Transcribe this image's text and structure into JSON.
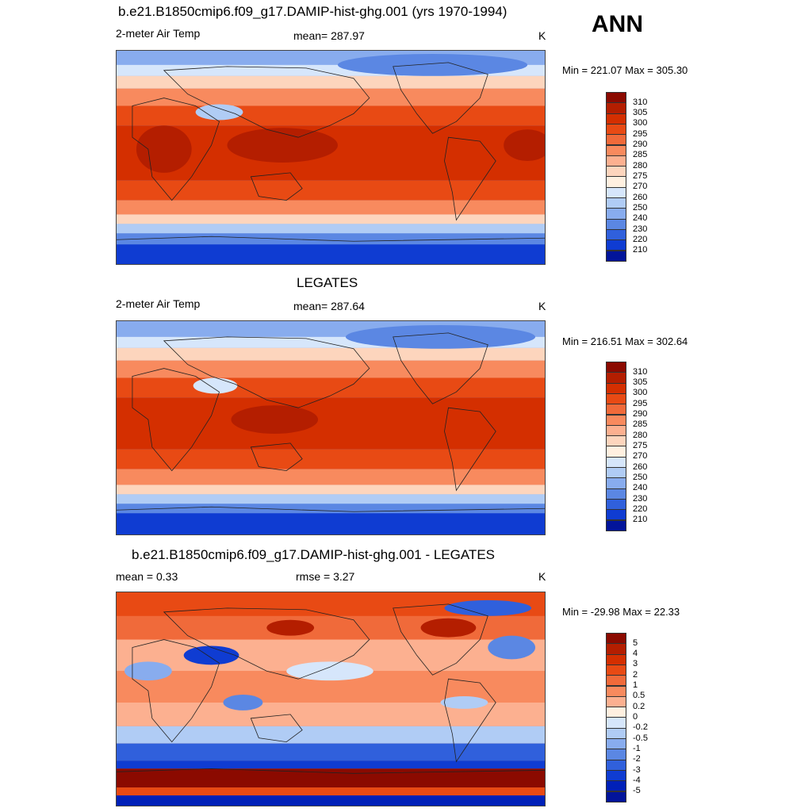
{
  "season": "ANN",
  "units": "K",
  "panels": [
    {
      "title": "b.e21.B1850cmip6.f09_g17.DAMIP-hist-ghg.001 (yrs 1970-1994)",
      "left_label": "2-meter Air Temp",
      "center_label": "mean= 287.97",
      "minmax": "Min = 221.07 Max = 305.30"
    },
    {
      "title": "LEGATES",
      "left_label": "2-meter Air Temp",
      "center_label": "mean= 287.64",
      "minmax": "Min = 216.51 Max = 302.64"
    },
    {
      "title": "b.e21.B1850cmip6.f09_g17.DAMIP-hist-ghg.001 - LEGATES",
      "left_label": "mean =   0.33",
      "center_label": "rmse =   3.27",
      "minmax": "Min = -29.98 Max =  22.33"
    }
  ],
  "colorbar_abs": {
    "labels": [
      "310",
      "305",
      "300",
      "295",
      "290",
      "285",
      "280",
      "275",
      "270",
      "260",
      "250",
      "240",
      "230",
      "220",
      "210"
    ],
    "colors": [
      "#8b0a00",
      "#b41e00",
      "#d42f00",
      "#e84a14",
      "#f06a3a",
      "#f88a5e",
      "#fcb090",
      "#fdd5bd",
      "#fff0e0",
      "#d6e6fb",
      "#b0ccf5",
      "#88acee",
      "#5b87e3",
      "#3060dc",
      "#0f3cd2",
      "#02149a"
    ]
  },
  "colorbar_diff": {
    "labels": [
      "5",
      "4",
      "3",
      "2",
      "1",
      "0.5",
      "0.2",
      "0",
      "-0.2",
      "-0.5",
      "-1",
      "-2",
      "-3",
      "-4",
      "-5"
    ],
    "colors": [
      "#8b0a00",
      "#b41e00",
      "#d42f00",
      "#e84a14",
      "#f06a3a",
      "#f88a5e",
      "#fcb090",
      "#fff0e0",
      "#d6e6fb",
      "#b0ccf5",
      "#88acee",
      "#5b87e3",
      "#3060dc",
      "#0f3cd2",
      "#0020b8",
      "#02149a"
    ]
  }
}
